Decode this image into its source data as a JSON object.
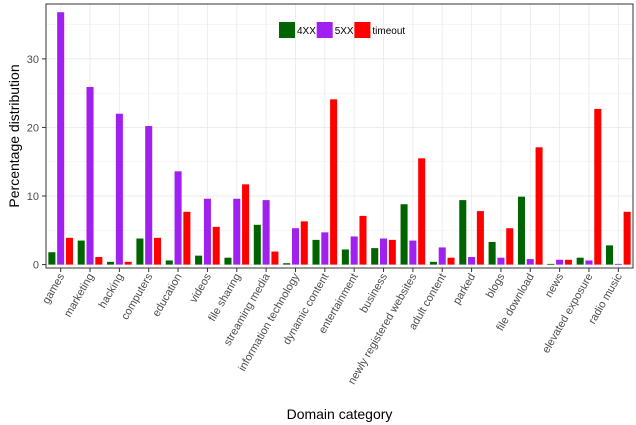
{
  "chart_data": {
    "type": "bar",
    "xlabel": "Domain category",
    "ylabel": "Percentage distribution",
    "ylim": [
      -0.5,
      38
    ],
    "yticks": [
      0,
      10,
      20,
      30
    ],
    "grid": true,
    "legend_position": "top-center",
    "categories": [
      "games",
      "marketing",
      "hacking",
      "computers",
      "education",
      "videos",
      "file sharing",
      "streaming media",
      "information technology",
      "dynamic content",
      "entertainment",
      "business",
      "newly registered websites",
      "adult content",
      "parked",
      "blogs",
      "file download",
      "news",
      "elevated exposure",
      "radio music"
    ],
    "series": [
      {
        "name": "4XX",
        "color": "#006400",
        "values": [
          1.8,
          3.5,
          0.4,
          3.8,
          0.6,
          1.3,
          1.0,
          5.8,
          0.2,
          3.6,
          2.2,
          2.4,
          8.8,
          0.4,
          9.4,
          3.3,
          9.9,
          0.1,
          1.0,
          2.8
        ]
      },
      {
        "name": "5XX",
        "color": "#A020F0",
        "values": [
          36.8,
          25.9,
          22.0,
          20.2,
          13.6,
          9.6,
          9.6,
          9.4,
          5.3,
          4.7,
          4.1,
          3.8,
          3.5,
          2.5,
          1.1,
          1.0,
          0.8,
          0.7,
          0.6,
          0.1
        ]
      },
      {
        "name": "timeout",
        "color": "#FF0000",
        "values": [
          3.9,
          1.1,
          0.4,
          3.9,
          7.7,
          5.5,
          11.7,
          1.9,
          6.3,
          24.1,
          7.1,
          3.6,
          15.5,
          1.0,
          7.8,
          5.3,
          17.1,
          0.7,
          22.7,
          7.7
        ]
      }
    ]
  }
}
